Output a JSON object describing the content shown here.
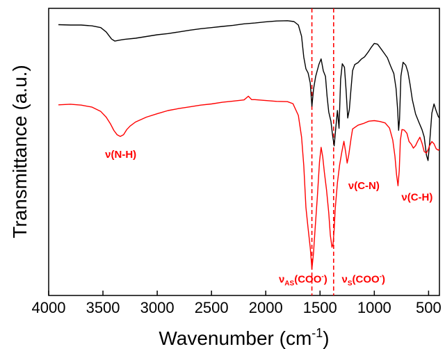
{
  "chart_data": {
    "type": "line",
    "title": "",
    "xlabel": "Wavenumber (cm",
    "xlabel_sup": "-1",
    "xlabel_end": ")",
    "ylabel": "Transmittance (a.u.)",
    "xlim": [
      4000,
      400
    ],
    "x_reversed": true,
    "ylim": [
      0,
      100
    ],
    "y_ticks_shown": false,
    "grid": false,
    "x_ticks": [
      {
        "value": 4000,
        "label": "4000"
      },
      {
        "value": 3500,
        "label": "3500"
      },
      {
        "value": 3000,
        "label": "3000"
      },
      {
        "value": 2500,
        "label": "2500"
      },
      {
        "value": 2000,
        "label": "2000"
      },
      {
        "value": 1500,
        "label": "1500"
      },
      {
        "value": 1000,
        "label": "1000"
      },
      {
        "value": 500,
        "label": "500"
      }
    ],
    "series": [
      {
        "color": "#000000",
        "points": [
          [
            3910,
            94.3
          ],
          [
            3800,
            94.2
          ],
          [
            3700,
            94.2
          ],
          [
            3600,
            93.9
          ],
          [
            3520,
            93.3
          ],
          [
            3470,
            91.8
          ],
          [
            3420,
            89.3
          ],
          [
            3390,
            88.6
          ],
          [
            3350,
            88.9
          ],
          [
            3300,
            89.2
          ],
          [
            3200,
            89.6
          ],
          [
            3100,
            90.2
          ],
          [
            3000,
            90.8
          ],
          [
            2900,
            91.2
          ],
          [
            2800,
            91.8
          ],
          [
            2700,
            92.4
          ],
          [
            2600,
            92.9
          ],
          [
            2500,
            93.3
          ],
          [
            2400,
            93.7
          ],
          [
            2300,
            94.1
          ],
          [
            2200,
            94.6
          ],
          [
            2100,
            94.9
          ],
          [
            2000,
            95.3
          ],
          [
            1900,
            95.6
          ],
          [
            1800,
            95.7
          ],
          [
            1740,
            95.4
          ],
          [
            1700,
            94.2
          ],
          [
            1670,
            90.3
          ],
          [
            1650,
            83.0
          ],
          [
            1630,
            78.9
          ],
          [
            1610,
            77.5
          ],
          [
            1590,
            74.0
          ],
          [
            1575,
            65.9
          ],
          [
            1560,
            71.8
          ],
          [
            1540,
            76.3
          ],
          [
            1510,
            80.5
          ],
          [
            1490,
            82.4
          ],
          [
            1470,
            78.2
          ],
          [
            1450,
            76.3
          ],
          [
            1435,
            69.4
          ],
          [
            1420,
            63.9
          ],
          [
            1400,
            60.7
          ],
          [
            1385,
            56.0
          ],
          [
            1370,
            52.1
          ],
          [
            1355,
            58.3
          ],
          [
            1340,
            64.4
          ],
          [
            1325,
            58.2
          ],
          [
            1310,
            75.3
          ],
          [
            1295,
            80.7
          ],
          [
            1275,
            79.5
          ],
          [
            1260,
            71.7
          ],
          [
            1245,
            61.8
          ],
          [
            1230,
            64.7
          ],
          [
            1215,
            71.9
          ],
          [
            1200,
            78.3
          ],
          [
            1180,
            80.4
          ],
          [
            1150,
            81.1
          ],
          [
            1120,
            82.3
          ],
          [
            1090,
            83.1
          ],
          [
            1060,
            84.6
          ],
          [
            1030,
            86.3
          ],
          [
            1000,
            87.8
          ],
          [
            970,
            87.5
          ],
          [
            940,
            86.0
          ],
          [
            910,
            84.4
          ],
          [
            880,
            82.8
          ],
          [
            850,
            79.9
          ],
          [
            820,
            77.3
          ],
          [
            800,
            72.1
          ],
          [
            785,
            64.7
          ],
          [
            776,
            57.5
          ],
          [
            768,
            61.2
          ],
          [
            755,
            76.4
          ],
          [
            735,
            81.2
          ],
          [
            710,
            80.2
          ],
          [
            690,
            77.8
          ],
          [
            670,
            73.3
          ],
          [
            650,
            68.2
          ],
          [
            620,
            63.2
          ],
          [
            590,
            60.4
          ],
          [
            560,
            57.7
          ],
          [
            540,
            55.2
          ],
          [
            520,
            48.9
          ],
          [
            505,
            47.0
          ],
          [
            490,
            53.2
          ],
          [
            470,
            63.5
          ],
          [
            450,
            66.7
          ],
          [
            430,
            64.3
          ],
          [
            410,
            62.3
          ],
          [
            400,
            61.8
          ]
        ]
      },
      {
        "color": "#ff0000",
        "points": [
          [
            3910,
            66.4
          ],
          [
            3800,
            66.6
          ],
          [
            3700,
            66.3
          ],
          [
            3600,
            65.6
          ],
          [
            3520,
            64.1
          ],
          [
            3470,
            62.1
          ],
          [
            3430,
            59.7
          ],
          [
            3400,
            57.5
          ],
          [
            3370,
            56.0
          ],
          [
            3340,
            55.4
          ],
          [
            3310,
            56.0
          ],
          [
            3280,
            57.8
          ],
          [
            3250,
            59.0
          ],
          [
            3200,
            60.4
          ],
          [
            3100,
            62.1
          ],
          [
            3000,
            63.3
          ],
          [
            2900,
            64.4
          ],
          [
            2800,
            65.1
          ],
          [
            2700,
            65.7
          ],
          [
            2600,
            66.3
          ],
          [
            2500,
            66.7
          ],
          [
            2400,
            67.3
          ],
          [
            2300,
            67.7
          ],
          [
            2200,
            68.1
          ],
          [
            2160,
            69.4
          ],
          [
            2130,
            68.2
          ],
          [
            2100,
            68.2
          ],
          [
            2000,
            67.9
          ],
          [
            1900,
            67.6
          ],
          [
            1800,
            67.5
          ],
          [
            1750,
            66.8
          ],
          [
            1700,
            62.7
          ],
          [
            1670,
            55.2
          ],
          [
            1650,
            45.2
          ],
          [
            1630,
            30.6
          ],
          [
            1610,
            23.4
          ],
          [
            1590,
            16.6
          ],
          [
            1575,
            9.3
          ],
          [
            1560,
            14.8
          ],
          [
            1545,
            23.6
          ],
          [
            1525,
            34.3
          ],
          [
            1505,
            46.5
          ],
          [
            1490,
            51.6
          ],
          [
            1475,
            48.2
          ],
          [
            1460,
            42.9
          ],
          [
            1440,
            36.8
          ],
          [
            1420,
            28.8
          ],
          [
            1405,
            21.0
          ],
          [
            1390,
            16.8
          ],
          [
            1380,
            17.9
          ],
          [
            1370,
            23.0
          ],
          [
            1360,
            30.1
          ],
          [
            1340,
            39.3
          ],
          [
            1320,
            45.4
          ],
          [
            1300,
            49.8
          ],
          [
            1280,
            53.7
          ],
          [
            1265,
            50.2
          ],
          [
            1250,
            46.1
          ],
          [
            1235,
            49.0
          ],
          [
            1215,
            54.5
          ],
          [
            1200,
            58.0
          ],
          [
            1150,
            59.3
          ],
          [
            1100,
            59.9
          ],
          [
            1050,
            60.7
          ],
          [
            1000,
            60.9
          ],
          [
            950,
            60.6
          ],
          [
            900,
            60.1
          ],
          [
            860,
            58.3
          ],
          [
            830,
            54.1
          ],
          [
            810,
            48.5
          ],
          [
            795,
            42.1
          ],
          [
            782,
            38.2
          ],
          [
            770,
            43.5
          ],
          [
            760,
            54.0
          ],
          [
            745,
            57.8
          ],
          [
            725,
            57.6
          ],
          [
            700,
            56.5
          ],
          [
            680,
            53.6
          ],
          [
            660,
            52.7
          ],
          [
            640,
            51.3
          ],
          [
            620,
            52.2
          ],
          [
            600,
            53.8
          ],
          [
            580,
            55.1
          ],
          [
            560,
            53.0
          ],
          [
            540,
            50.1
          ],
          [
            520,
            49.6
          ],
          [
            505,
            50.7
          ],
          [
            490,
            52.2
          ],
          [
            470,
            53.6
          ],
          [
            450,
            52.8
          ],
          [
            430,
            51.1
          ],
          [
            410,
            50.6
          ],
          [
            400,
            51.0
          ]
        ]
      }
    ],
    "reference_lines": [
      {
        "x": 1575,
        "color": "#ff0000",
        "style": "dashed"
      },
      {
        "x": 1375,
        "color": "#ff0000",
        "style": "dashed"
      }
    ],
    "annotations": [
      {
        "text": "ν(N-H)",
        "x": 3480,
        "y": 48,
        "color": "#ff0000"
      },
      {
        "text": "ν(C-N)",
        "x": 1240,
        "y": 37,
        "color": "#ff0000"
      },
      {
        "text": "ν(C-H)",
        "x": 750,
        "y": 33,
        "color": "#ff0000"
      }
    ],
    "sub_annotations": [
      {
        "main": "ν",
        "sub": "AS",
        "rest": "(COO",
        "sup": "-",
        "end": ")",
        "x": 1880,
        "y": 4.5,
        "color": "#ff0000"
      },
      {
        "main": "ν",
        "sub": "S",
        "rest": "(COO",
        "sup": "-",
        "end": ")",
        "x": 1300,
        "y": 4.5,
        "color": "#ff0000"
      }
    ]
  }
}
